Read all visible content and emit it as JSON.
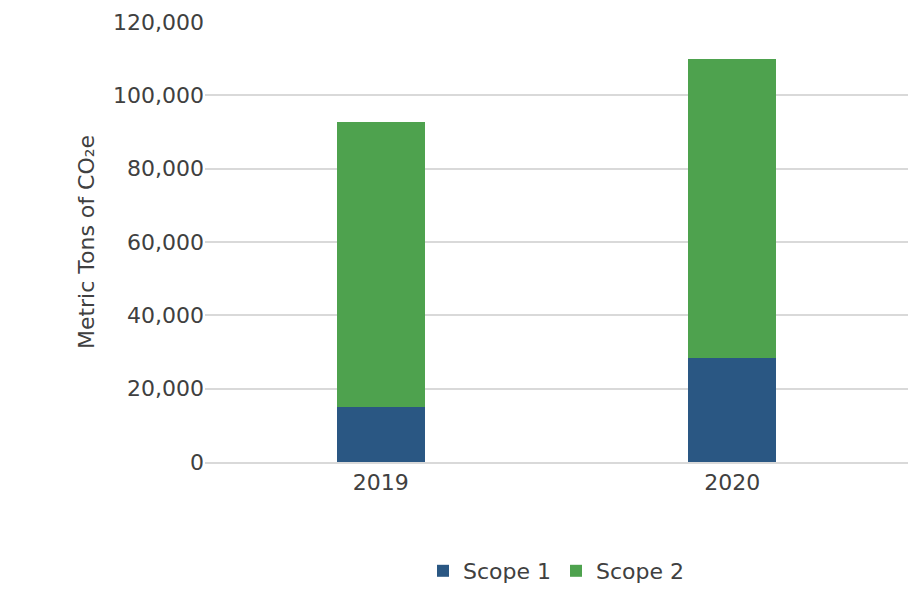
{
  "chart_data": {
    "type": "bar",
    "stacked": true,
    "ylabel": "Metric Tons of CO₂e",
    "categories": [
      "2019",
      "2020"
    ],
    "series": [
      {
        "name": "Scope 1",
        "color": "#2a5783",
        "values": [
          15000,
          28400
        ]
      },
      {
        "name": "Scope 2",
        "color": "#4ea24e",
        "values": [
          77700,
          81400
        ]
      }
    ],
    "ylim": [
      0,
      120000
    ],
    "yticks": [
      0,
      {
        "value": 20000,
        "label": "20,000"
      },
      {
        "value": 40000,
        "label": "40,000"
      },
      {
        "value": 60000,
        "label": "60,000"
      },
      {
        "value": 80000,
        "label": "80,000"
      },
      {
        "value": 100000,
        "label": "100,000"
      },
      {
        "value": 120000,
        "label": "120,000"
      }
    ],
    "grid": true,
    "legend": "bottom"
  }
}
